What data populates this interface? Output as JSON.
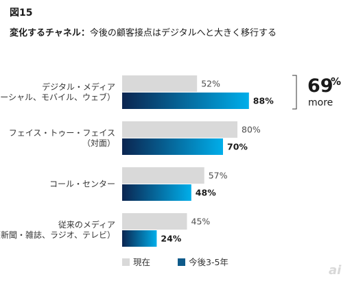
{
  "figure_label": "図15",
  "title": {
    "main": "変化するチャネル：",
    "sub": "今後の顧客接点はデジタルへと大きく移行する"
  },
  "chart_data": {
    "type": "bar",
    "orientation": "horizontal",
    "categories": [
      [
        "デジタル・メディア",
        "（ソーシャル、モバイル、ウェブ）"
      ],
      [
        "フェイス・トゥー・フェイス",
        "（対面）"
      ],
      [
        "コール・センター"
      ],
      [
        "従来のメディア",
        "（新聞・雑誌、ラジオ、テレビ）"
      ]
    ],
    "series": [
      {
        "name": "現在",
        "values": [
          52,
          80,
          57,
          45
        ],
        "labels": [
          "52%",
          "80%",
          "57%",
          "45%"
        ],
        "color": "#d9d9d9"
      },
      {
        "name": "今後3-5年",
        "values": [
          88,
          70,
          48,
          24
        ],
        "labels": [
          "88%",
          "70%",
          "48%",
          "24%"
        ],
        "color_start": "#0b2550",
        "color_end": "#00aeea"
      }
    ],
    "xlim": [
      0,
      100
    ],
    "xlabel": "",
    "ylabel": "",
    "grid": false,
    "legend_position": "bottom-left",
    "annotation": {
      "number": "69",
      "percent": "%",
      "word": "more",
      "category_index": 0
    }
  },
  "watermark": "ai"
}
